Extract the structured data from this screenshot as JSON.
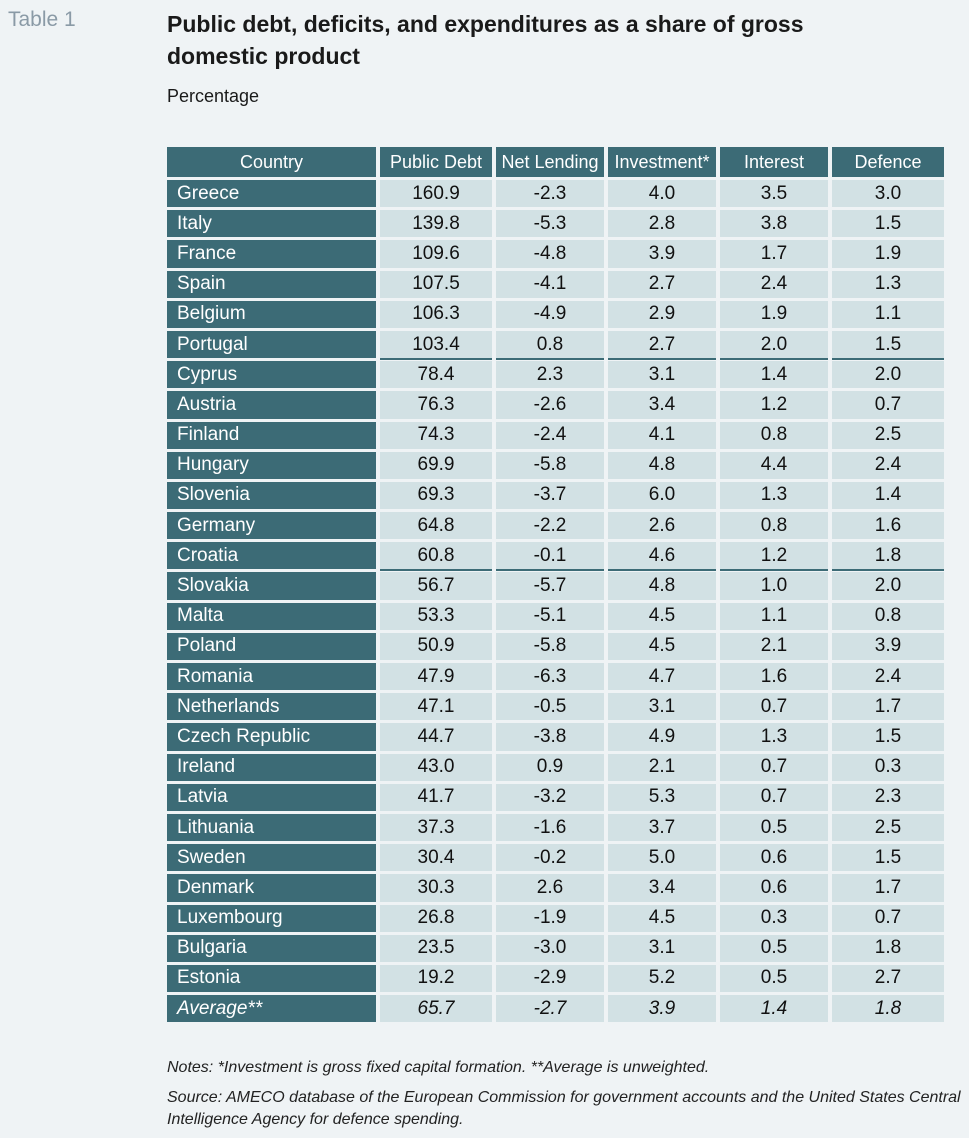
{
  "table_label": "Table 1",
  "title": "Public debt, deficits, and expenditures as a share of gross domestic product",
  "subtitle": "Percentage",
  "columns": [
    "Country",
    "Public Debt",
    "Net Lending",
    "Investment*",
    "Interest",
    "Defence"
  ],
  "rows": [
    [
      "Greece",
      "160.9",
      "-2.3",
      "4.0",
      "3.5",
      "3.0"
    ],
    [
      "Italy",
      "139.8",
      "-5.3",
      "2.8",
      "3.8",
      "1.5"
    ],
    [
      "France",
      "109.6",
      "-4.8",
      "3.9",
      "1.7",
      "1.9"
    ],
    [
      "Spain",
      "107.5",
      "-4.1",
      "2.7",
      "2.4",
      "1.3"
    ],
    [
      "Belgium",
      "106.3",
      "-4.9",
      "2.9",
      "1.9",
      "1.1"
    ],
    [
      "Portugal",
      "103.4",
      "0.8",
      "2.7",
      "2.0",
      "1.5"
    ],
    [
      "Cyprus",
      "78.4",
      "2.3",
      "3.1",
      "1.4",
      "2.0"
    ],
    [
      "Austria",
      "76.3",
      "-2.6",
      "3.4",
      "1.2",
      "0.7"
    ],
    [
      "Finland",
      "74.3",
      "-2.4",
      "4.1",
      "0.8",
      "2.5"
    ],
    [
      "Hungary",
      "69.9",
      "-5.8",
      "4.8",
      "4.4",
      "2.4"
    ],
    [
      "Slovenia",
      "69.3",
      "-3.7",
      "6.0",
      "1.3",
      "1.4"
    ],
    [
      "Germany",
      "64.8",
      "-2.2",
      "2.6",
      "0.8",
      "1.6"
    ],
    [
      "Croatia",
      "60.8",
      "-0.1",
      "4.6",
      "1.2",
      "1.8"
    ],
    [
      "Slovakia",
      "56.7",
      "-5.7",
      "4.8",
      "1.0",
      "2.0"
    ],
    [
      "Malta",
      "53.3",
      "-5.1",
      "4.5",
      "1.1",
      "0.8"
    ],
    [
      "Poland",
      "50.9",
      "-5.8",
      "4.5",
      "2.1",
      "3.9"
    ],
    [
      "Romania",
      "47.9",
      "-6.3",
      "4.7",
      "1.6",
      "2.4"
    ],
    [
      "Netherlands",
      "47.1",
      "-0.5",
      "3.1",
      "0.7",
      "1.7"
    ],
    [
      "Czech Republic",
      "44.7",
      "-3.8",
      "4.9",
      "1.3",
      "1.5"
    ],
    [
      "Ireland",
      "43.0",
      "0.9",
      "2.1",
      "0.7",
      "0.3"
    ],
    [
      "Latvia",
      "41.7",
      "-3.2",
      "5.3",
      "0.7",
      "2.3"
    ],
    [
      "Lithuania",
      "37.3",
      "-1.6",
      "3.7",
      "0.5",
      "2.5"
    ],
    [
      "Sweden",
      "30.4",
      "-0.2",
      "5.0",
      "0.6",
      "1.5"
    ],
    [
      "Denmark",
      "30.3",
      "2.6",
      "3.4",
      "0.6",
      "1.7"
    ],
    [
      "Luxembourg",
      "26.8",
      "-1.9",
      "4.5",
      "0.3",
      "0.7"
    ],
    [
      "Bulgaria",
      "23.5",
      "-3.0",
      "3.1",
      "0.5",
      "1.8"
    ],
    [
      "Estonia",
      "19.2",
      "-2.9",
      "5.2",
      "0.5",
      "2.7"
    ]
  ],
  "average": [
    "Average**",
    "65.7",
    "-2.7",
    "3.9",
    "1.4",
    "1.8"
  ],
  "group_separators_after": [
    "Portugal",
    "Croatia"
  ],
  "notes": "Notes: *Investment is gross fixed capital formation. **Average is unweighted.",
  "source": "Source: AMECO database of the European Commission for government accounts and the United States Central Intelligence Agency for defence spending.",
  "colors": {
    "header_bg": "#3c6b76",
    "cell_bg": "#d2e1e4",
    "page_bg": "#eff3f5",
    "label_color": "#8a9aa6"
  }
}
